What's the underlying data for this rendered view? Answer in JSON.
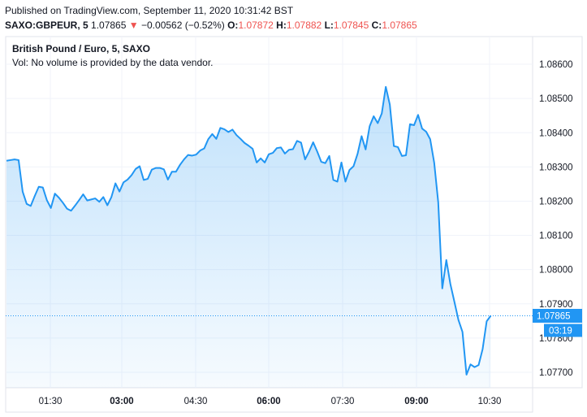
{
  "header": {
    "line1": "Published on TradingView.com, September 11, 2020 10:31:42 BST",
    "symbol": "SAXO:GBPEUR, 5",
    "price": "1.07865",
    "change_arrow": "▼",
    "change": "−0.00562 (−0.52%)",
    "o_label": "O:",
    "o_value": "1.07872",
    "h_label": "H:",
    "h_value": "1.07882",
    "l_label": "L:",
    "l_value": "1.07845",
    "c_label": "C:",
    "c_value": "1.07865"
  },
  "legend": {
    "title": "British Pound / Euro, 5, SAXO",
    "volume_note": "Vol: No volume is provided by the data vendor."
  },
  "price_badge": {
    "value": "1.07865",
    "countdown": "03:19"
  },
  "colors": {
    "line": "#2196f3",
    "badge": "#2196f3",
    "down": "#ef5350",
    "grid": "#f0f3fa"
  },
  "chart_data": {
    "type": "area",
    "title": "British Pound / Euro, 5, SAXO",
    "xlabel": "",
    "ylabel": "",
    "ylim": [
      1.0765,
      1.0865
    ],
    "y_ticks": [
      "1.08600",
      "1.08500",
      "1.08400",
      "1.08300",
      "1.08200",
      "1.08100",
      "1.08000",
      "1.07900",
      "1.07800",
      "1.07700"
    ],
    "x_ticks": [
      {
        "label": "01:30",
        "bold": false
      },
      {
        "label": "03:00",
        "bold": true
      },
      {
        "label": "04:30",
        "bold": false
      },
      {
        "label": "06:00",
        "bold": true
      },
      {
        "label": "07:30",
        "bold": false
      },
      {
        "label": "09:00",
        "bold": true
      },
      {
        "label": "10:30",
        "bold": false
      }
    ],
    "series": [
      {
        "values": [
          1.08318,
          1.0832,
          1.08322,
          1.0832,
          1.08228,
          1.08192,
          1.08186,
          1.08215,
          1.08242,
          1.0824,
          1.08203,
          1.0818,
          1.08222,
          1.0821,
          1.08195,
          1.08178,
          1.08172,
          1.08187,
          1.08203,
          1.0822,
          1.08202,
          1.08205,
          1.08208,
          1.08198,
          1.08212,
          1.08188,
          1.08212,
          1.08252,
          1.08228,
          1.08255,
          1.08263,
          1.08276,
          1.08294,
          1.08302,
          1.08262,
          1.08265,
          1.08292,
          1.08297,
          1.08297,
          1.08293,
          1.08263,
          1.08286,
          1.08286,
          1.08306,
          1.08322,
          1.08335,
          1.08333,
          1.08336,
          1.08348,
          1.08354,
          1.08381,
          1.08396,
          1.08382,
          1.08414,
          1.0841,
          1.08402,
          1.08409,
          1.08393,
          1.08382,
          1.0837,
          1.08362,
          1.08353,
          1.08313,
          1.08325,
          1.08313,
          1.08337,
          1.08341,
          1.08355,
          1.08357,
          1.08339,
          1.0835,
          1.08352,
          1.08376,
          1.08371,
          1.08322,
          1.08345,
          1.08372,
          1.08345,
          1.08315,
          1.08311,
          1.08332,
          1.08262,
          1.08257,
          1.08313,
          1.08257,
          1.08291,
          1.08302,
          1.08338,
          1.0839,
          1.08351,
          1.08419,
          1.08448,
          1.08428,
          1.08456,
          1.08534,
          1.08482,
          1.08361,
          1.08358,
          1.08332,
          1.08334,
          1.08425,
          1.08422,
          1.08452,
          1.08412,
          1.08403,
          1.08381,
          1.08312,
          1.08196,
          1.07945,
          1.08028,
          1.07958,
          1.07906,
          1.07853,
          1.07818,
          1.07693,
          1.07723,
          1.07715,
          1.07721,
          1.07768,
          1.07849,
          1.07865
        ]
      }
    ]
  }
}
